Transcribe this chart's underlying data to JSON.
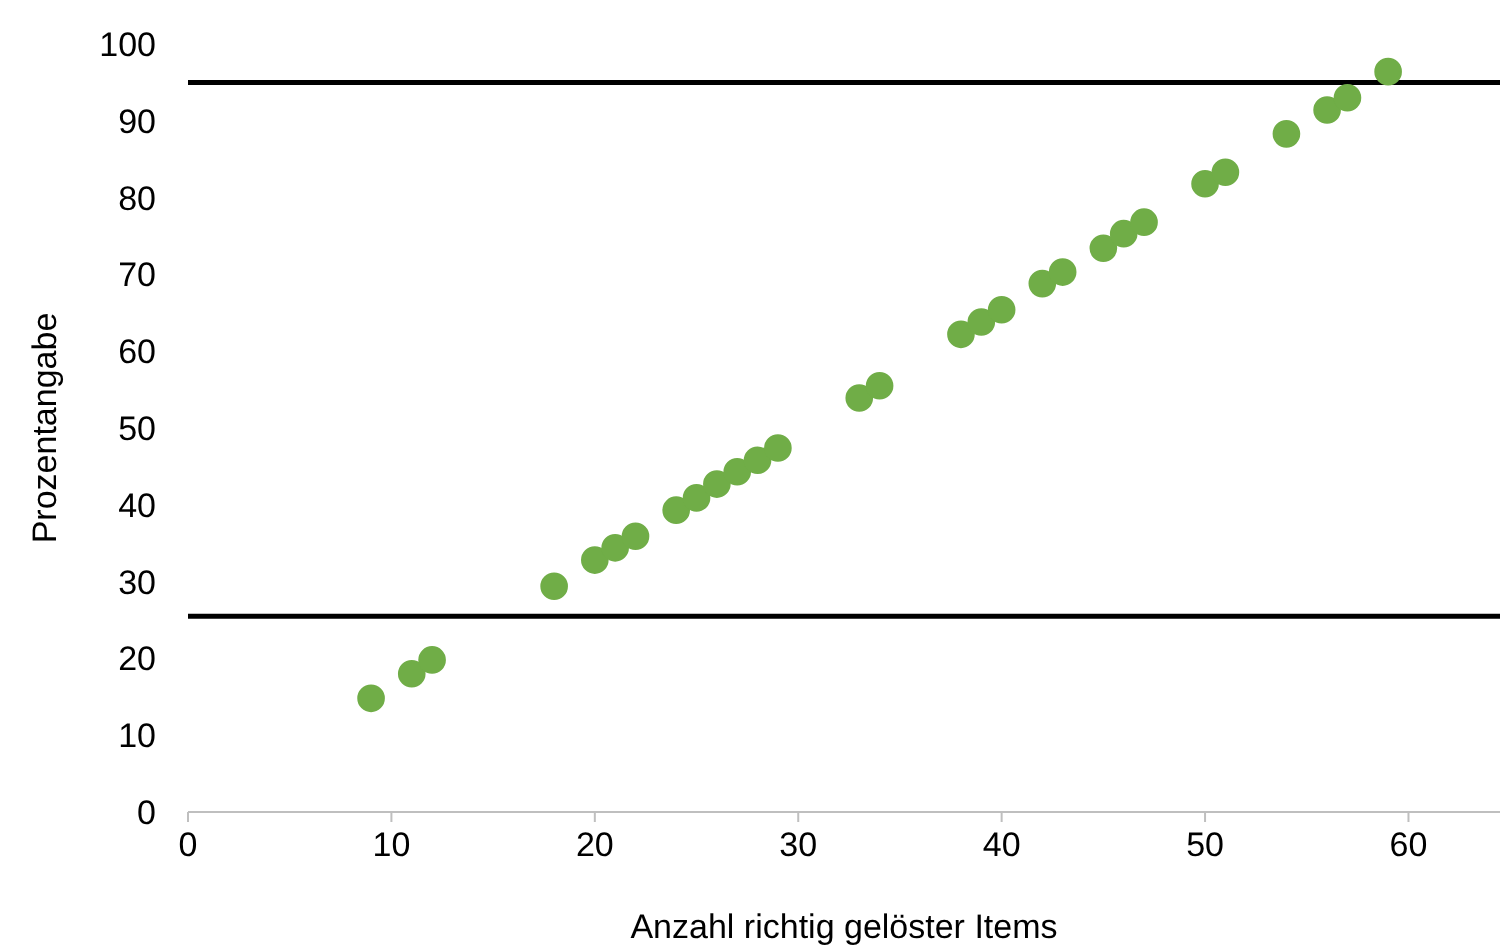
{
  "chart_data": {
    "type": "scatter",
    "xlabel": "Anzahl richtig gelöster Items",
    "ylabel": "Prozentangabe",
    "x": [
      9,
      11,
      12,
      18,
      20,
      21,
      22,
      24,
      25,
      26,
      27,
      28,
      29,
      33,
      34,
      38,
      39,
      40,
      42,
      43,
      45,
      46,
      47,
      50,
      51,
      54,
      56,
      57,
      59
    ],
    "values": [
      14.8,
      18,
      19.8,
      29.4,
      32.8,
      34.4,
      35.9,
      39.3,
      40.9,
      42.7,
      44.3,
      45.8,
      47.4,
      53.9,
      55.5,
      62.2,
      63.8,
      65.4,
      68.8,
      70.3,
      73.4,
      75.3,
      76.8,
      81.8,
      83.3,
      88.3,
      91.4,
      93,
      96.4
    ],
    "color": "#70ad47",
    "marker": "circle",
    "xlim": [
      0,
      64.5
    ],
    "xticks": [
      0,
      10,
      20,
      30,
      40,
      50,
      60
    ],
    "ylim": [
      0,
      100
    ],
    "yticks": [
      0,
      10,
      20,
      30,
      40,
      50,
      60,
      70,
      80,
      90,
      100
    ],
    "ref_lines": [
      {
        "axis": "y",
        "value": 95,
        "color": "#000000"
      },
      {
        "axis": "y",
        "value": 25.5,
        "color": "#000000"
      }
    ]
  }
}
